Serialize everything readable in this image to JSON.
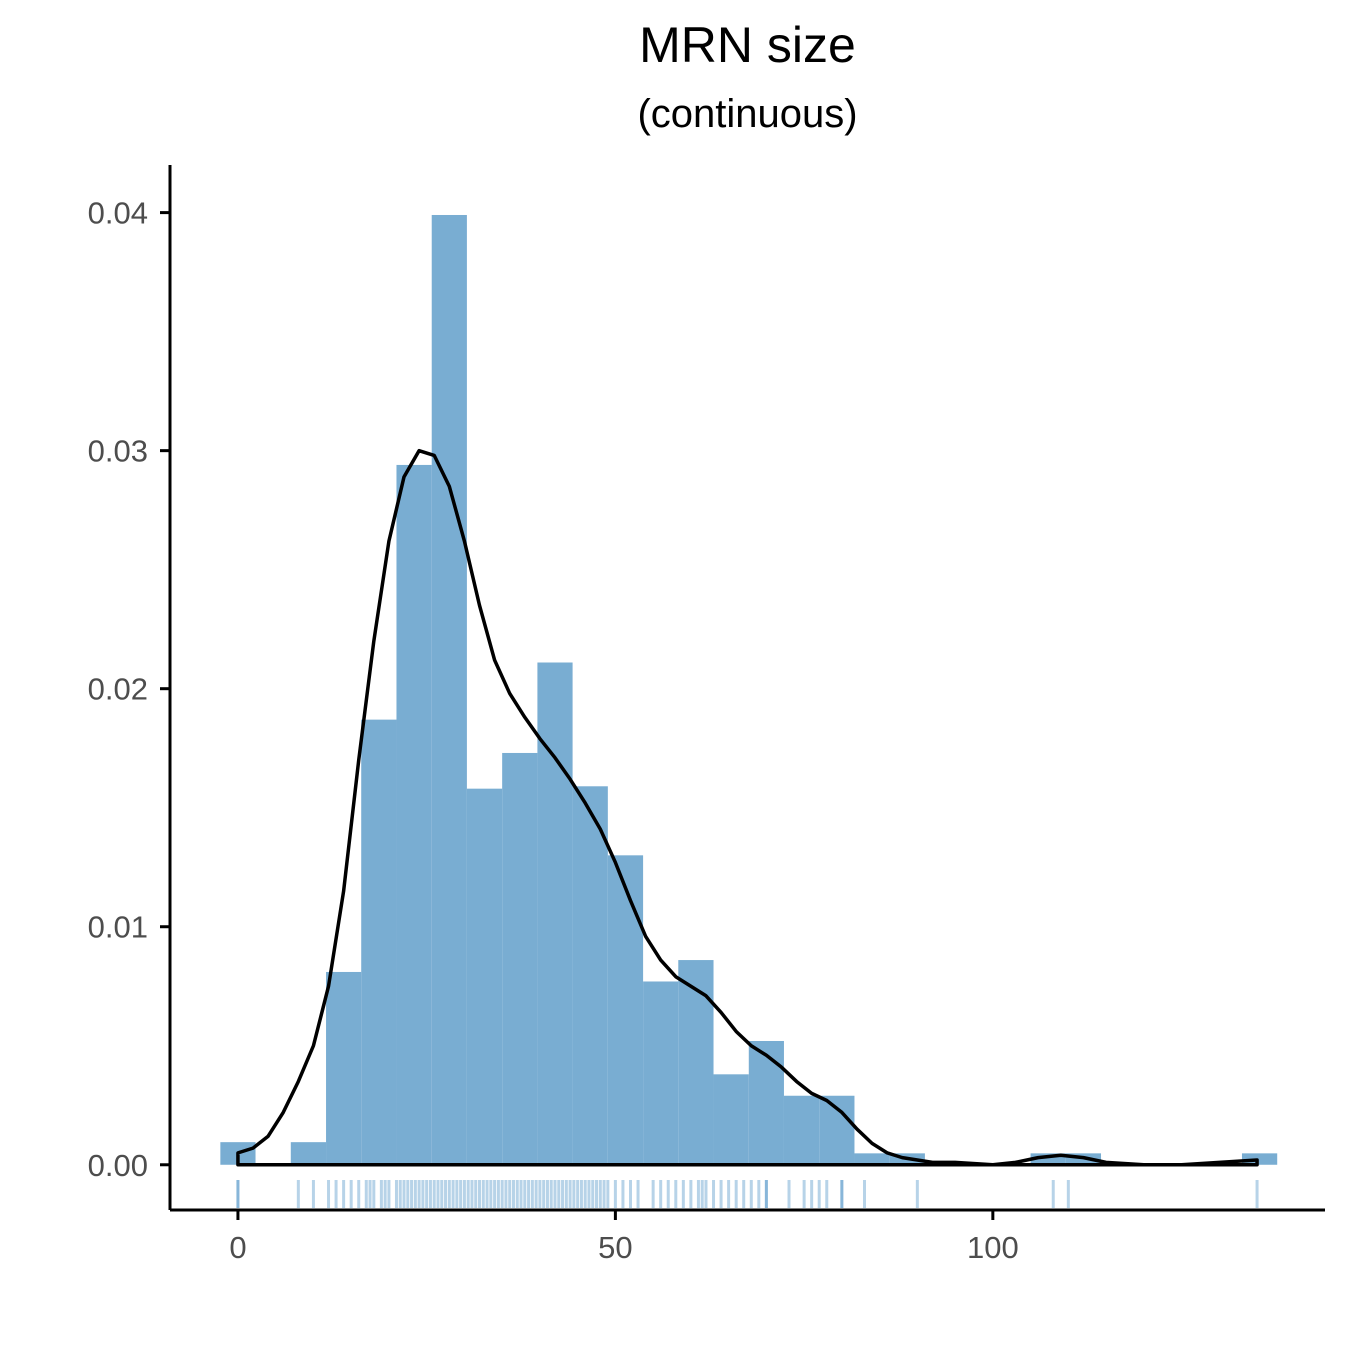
{
  "chart_data": {
    "type": "histogram",
    "title": "MRN size",
    "subtitle": "(continuous)",
    "xlabel": "",
    "ylabel": "",
    "xlim": [
      -9,
      144
    ],
    "ylim": [
      -0.0019,
      0.042
    ],
    "x_ticks": [
      0,
      50,
      100
    ],
    "y_ticks": [
      0.0,
      0.01,
      0.02,
      0.03,
      0.04
    ],
    "x_tick_labels": [
      "0",
      "50",
      "100"
    ],
    "y_tick_labels": [
      "0.00",
      "0.01",
      "0.02",
      "0.03",
      "0.04"
    ],
    "grid": false,
    "legend": "none",
    "bin_width": 4.67,
    "bins": [
      {
        "x0": -2.33,
        "x1": 2.33,
        "density": 0.00095
      },
      {
        "x0": 2.33,
        "x1": 7.0,
        "density": 0.0
      },
      {
        "x0": 7.0,
        "x1": 11.67,
        "density": 0.00095
      },
      {
        "x0": 11.67,
        "x1": 16.33,
        "density": 0.0081
      },
      {
        "x0": 16.33,
        "x1": 21.0,
        "density": 0.0187
      },
      {
        "x0": 21.0,
        "x1": 25.67,
        "density": 0.0294
      },
      {
        "x0": 25.67,
        "x1": 30.33,
        "density": 0.0399
      },
      {
        "x0": 30.33,
        "x1": 35.0,
        "density": 0.0158
      },
      {
        "x0": 35.0,
        "x1": 39.67,
        "density": 0.0173
      },
      {
        "x0": 39.67,
        "x1": 44.33,
        "density": 0.0211
      },
      {
        "x0": 44.33,
        "x1": 49.0,
        "density": 0.0159
      },
      {
        "x0": 49.0,
        "x1": 53.67,
        "density": 0.013
      },
      {
        "x0": 53.67,
        "x1": 58.33,
        "density": 0.0077
      },
      {
        "x0": 58.33,
        "x1": 63.0,
        "density": 0.0086
      },
      {
        "x0": 63.0,
        "x1": 67.67,
        "density": 0.0038
      },
      {
        "x0": 67.67,
        "x1": 72.33,
        "density": 0.0052
      },
      {
        "x0": 72.33,
        "x1": 77.0,
        "density": 0.0029
      },
      {
        "x0": 77.0,
        "x1": 81.67,
        "density": 0.0029
      },
      {
        "x0": 81.67,
        "x1": 86.33,
        "density": 0.00048
      },
      {
        "x0": 86.33,
        "x1": 91.0,
        "density": 0.00048
      },
      {
        "x0": 91.0,
        "x1": 95.67,
        "density": 0.0
      },
      {
        "x0": 95.67,
        "x1": 100.33,
        "density": 0.0
      },
      {
        "x0": 100.33,
        "x1": 105.0,
        "density": 0.0
      },
      {
        "x0": 105.0,
        "x1": 109.67,
        "density": 0.00048
      },
      {
        "x0": 109.67,
        "x1": 114.33,
        "density": 0.00048
      },
      {
        "x0": 114.33,
        "x1": 119.0,
        "density": 0.0
      },
      {
        "x0": 119.0,
        "x1": 123.67,
        "density": 0.0
      },
      {
        "x0": 123.67,
        "x1": 128.33,
        "density": 0.0
      },
      {
        "x0": 128.33,
        "x1": 133.0,
        "density": 0.0
      },
      {
        "x0": 133.0,
        "x1": 137.67,
        "density": 0.00048
      }
    ],
    "density_curve": {
      "x": [
        0,
        2,
        4,
        6,
        8,
        10,
        12,
        14,
        16,
        18,
        20,
        22,
        24,
        26,
        28,
        30,
        32,
        34,
        36,
        38,
        40,
        42,
        44,
        46,
        48,
        50,
        52,
        54,
        56,
        58,
        60,
        62,
        64,
        66,
        68,
        70,
        72,
        74,
        76,
        78,
        80,
        82,
        84,
        86,
        88,
        90,
        92,
        95,
        100,
        103,
        106,
        109,
        112,
        115,
        120,
        125,
        130,
        135
      ],
      "y": [
        0.0005,
        0.0007,
        0.0012,
        0.0022,
        0.0035,
        0.005,
        0.0075,
        0.0115,
        0.017,
        0.022,
        0.0262,
        0.0289,
        0.03,
        0.0298,
        0.0285,
        0.0262,
        0.0235,
        0.0212,
        0.0198,
        0.0188,
        0.0179,
        0.0171,
        0.0162,
        0.0152,
        0.0141,
        0.0127,
        0.0111,
        0.0096,
        0.0086,
        0.0079,
        0.0075,
        0.0071,
        0.0064,
        0.0056,
        0.005,
        0.0046,
        0.0041,
        0.0035,
        0.003,
        0.0027,
        0.0022,
        0.0015,
        0.0009,
        0.0005,
        0.0003,
        0.0002,
        0.0001,
        0.0001,
        0.0,
        0.0001,
        0.0003,
        0.0004,
        0.0003,
        0.0001,
        0.0,
        0.0,
        0.0001,
        0.0002
      ]
    },
    "rug": [
      0,
      0,
      8,
      10,
      12,
      13,
      14,
      15,
      16,
      17,
      17.5,
      18,
      19,
      19.5,
      20,
      21,
      21.5,
      22,
      22.5,
      23,
      23.5,
      24,
      24.5,
      25,
      25.5,
      26,
      26.5,
      27,
      27.5,
      28,
      28.5,
      29,
      29.5,
      30,
      30.5,
      31,
      31.5,
      32,
      32.5,
      33,
      33.5,
      34,
      34.5,
      35,
      35.5,
      36,
      36.5,
      37,
      37.5,
      38,
      38.5,
      39,
      39.5,
      40,
      40.5,
      41,
      41.5,
      42,
      42.5,
      43,
      43.5,
      44,
      44.5,
      45,
      45.5,
      46,
      46.5,
      47,
      47.5,
      48,
      48.5,
      49,
      50,
      51,
      52,
      53,
      55,
      56,
      57,
      58,
      59,
      60,
      61,
      61.5,
      62,
      63,
      64,
      65,
      66,
      67,
      68,
      69,
      70,
      70,
      73,
      75,
      76,
      77,
      78,
      80,
      80,
      83,
      90,
      108,
      110,
      135
    ]
  },
  "colors": {
    "bar_fill": "#79add2",
    "rug": "#3182bd",
    "curve": "#000000",
    "axis": "#000000",
    "tick_label": "#4d4d4d"
  }
}
